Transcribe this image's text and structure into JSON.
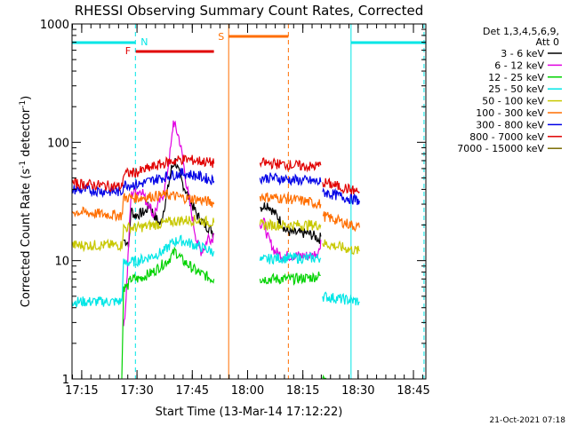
{
  "chart_data": {
    "type": "line",
    "title": "RHESSI Observing Summary Count Rates, Corrected",
    "xlabel": "Start Time (13-Mar-14 17:12:22)",
    "ylabel_main": "Corrected Count Rate (s",
    "ylabel_sup1": "-1",
    "ylabel_mid": " detector",
    "ylabel_sup2": "-1",
    "ylabel_end": ")",
    "yscale": "log",
    "ylim": [
      1,
      1000
    ],
    "xlim_minutes": [
      0,
      96
    ],
    "x_ticks": [
      {
        "label": "17:15",
        "minute": 2.63
      },
      {
        "label": "17:30",
        "minute": 17.63
      },
      {
        "label": "17:45",
        "minute": 32.63
      },
      {
        "label": "18:00",
        "minute": 47.63
      },
      {
        "label": "18:15",
        "minute": 62.63
      },
      {
        "label": "18:30",
        "minute": 77.63
      },
      {
        "label": "18:45",
        "minute": 92.63
      }
    ],
    "y_ticks": [
      {
        "label": "1",
        "value": 1
      },
      {
        "label": "10",
        "value": 10
      },
      {
        "label": "100",
        "value": 100
      },
      {
        "label": "1000",
        "value": 1000
      }
    ],
    "legend_header": [
      "Det 1,3,4,5,6,9,",
      "Att 0"
    ],
    "series": [
      {
        "name": "3 - 6 keV",
        "color": "#000000",
        "seg1": [
          [
            14,
            15
          ],
          [
            15.5,
            14
          ],
          [
            16,
            27
          ],
          [
            17,
            24
          ],
          [
            20,
            26
          ],
          [
            21,
            30
          ],
          [
            22,
            25
          ],
          [
            24,
            20
          ],
          [
            26,
            40
          ],
          [
            27,
            60
          ],
          [
            28,
            70
          ],
          [
            29,
            55
          ],
          [
            30,
            45
          ],
          [
            31,
            38
          ],
          [
            32,
            32
          ],
          [
            33,
            28
          ],
          [
            34,
            24
          ],
          [
            35,
            22
          ],
          [
            36,
            20
          ],
          [
            37,
            19
          ],
          [
            38,
            18
          ],
          [
            38.5,
            17
          ]
        ],
        "seg2": [
          [
            51,
            28
          ],
          [
            53,
            30
          ],
          [
            56,
            23
          ],
          [
            58,
            18
          ],
          [
            60,
            17
          ],
          [
            62,
            17
          ],
          [
            64,
            17
          ],
          [
            66,
            16
          ],
          [
            67,
            15
          ],
          [
            67.5,
            16
          ]
        ],
        "seg3": []
      },
      {
        "name": "6 - 12 keV",
        "color": "#e100e1",
        "seg1": [
          [
            14,
            2.8
          ],
          [
            14.5,
            4
          ],
          [
            15,
            8
          ],
          [
            16,
            35
          ],
          [
            17,
            40
          ],
          [
            18,
            38
          ],
          [
            19,
            40
          ],
          [
            20,
            32
          ],
          [
            21,
            30
          ],
          [
            22,
            24
          ],
          [
            23,
            28
          ],
          [
            25,
            38
          ],
          [
            26,
            60
          ],
          [
            27,
            100
          ],
          [
            27.5,
            150
          ],
          [
            28,
            135
          ],
          [
            29,
            110
          ],
          [
            30,
            75
          ],
          [
            31,
            45
          ],
          [
            32,
            30
          ],
          [
            33,
            20
          ],
          [
            34,
            14
          ],
          [
            35,
            12
          ],
          [
            36,
            13
          ],
          [
            37,
            16
          ],
          [
            38,
            15
          ],
          [
            38.5,
            17
          ]
        ],
        "seg2": [
          [
            51,
            20
          ],
          [
            52,
            22
          ],
          [
            53,
            16
          ],
          [
            55,
            12
          ],
          [
            57,
            11
          ],
          [
            59,
            11
          ],
          [
            62,
            11
          ],
          [
            65,
            11
          ],
          [
            67,
            12
          ],
          [
            67.5,
            15
          ]
        ],
        "seg3": []
      },
      {
        "name": "12 - 25 keV",
        "color": "#00d200",
        "seg1": [
          [
            13.5,
            1
          ],
          [
            14,
            6
          ],
          [
            15,
            6
          ],
          [
            16,
            7
          ],
          [
            17,
            7
          ],
          [
            18,
            7
          ],
          [
            20,
            7.5
          ],
          [
            22,
            8
          ],
          [
            24,
            9
          ],
          [
            26,
            10
          ],
          [
            27,
            11
          ],
          [
            28,
            12
          ],
          [
            29,
            11
          ],
          [
            30,
            10
          ],
          [
            32,
            9
          ],
          [
            34,
            8
          ],
          [
            36,
            7.5
          ],
          [
            38,
            7
          ],
          [
            38.5,
            7
          ]
        ],
        "seg2": [
          [
            51,
            7
          ],
          [
            55,
            7
          ],
          [
            60,
            7
          ],
          [
            65,
            7.2
          ],
          [
            67.5,
            7.5
          ]
        ],
        "seg3": [
          [
            68,
            1
          ],
          [
            69,
            1
          ]
        ]
      },
      {
        "name": "25 - 50 keV",
        "color": "#00e6e6",
        "seg1": [
          [
            0,
            4.5
          ],
          [
            13.5,
            4.5
          ],
          [
            14,
            9.5
          ],
          [
            18,
            10
          ],
          [
            22,
            11
          ],
          [
            25,
            12
          ],
          [
            27,
            14
          ],
          [
            29,
            15
          ],
          [
            32,
            14
          ],
          [
            35,
            13
          ],
          [
            38,
            12
          ],
          [
            38.5,
            12
          ]
        ],
        "seg2": [
          [
            51,
            10
          ],
          [
            55,
            10.5
          ],
          [
            60,
            10.5
          ],
          [
            65,
            10.5
          ],
          [
            67.5,
            10.5
          ]
        ],
        "seg3": [
          [
            68,
            5
          ],
          [
            78,
            4.5
          ]
        ]
      },
      {
        "name": "50 - 100 keV",
        "color": "#c8c800",
        "seg1": [
          [
            0,
            13.5
          ],
          [
            13.5,
            13.5
          ],
          [
            14,
            19
          ],
          [
            18,
            19
          ],
          [
            22,
            20
          ],
          [
            26,
            21
          ],
          [
            30,
            22
          ],
          [
            34,
            22
          ],
          [
            38,
            21
          ],
          [
            38.5,
            21
          ]
        ],
        "seg2": [
          [
            51,
            20
          ],
          [
            55,
            20
          ],
          [
            60,
            20
          ],
          [
            65,
            20
          ],
          [
            67.5,
            20
          ]
        ],
        "seg3": [
          [
            68,
            14
          ],
          [
            78,
            12
          ]
        ]
      },
      {
        "name": "100 - 300 keV",
        "color": "#ff6e00",
        "seg1": [
          [
            0,
            26
          ],
          [
            13.5,
            24
          ],
          [
            14,
            34
          ],
          [
            18,
            34
          ],
          [
            22,
            35
          ],
          [
            26,
            36
          ],
          [
            30,
            34
          ],
          [
            34,
            33
          ],
          [
            38,
            31
          ],
          [
            38.5,
            30
          ]
        ],
        "seg2": [
          [
            51,
            35
          ],
          [
            55,
            34
          ],
          [
            60,
            33
          ],
          [
            65,
            31
          ],
          [
            67.5,
            30
          ]
        ],
        "seg3": [
          [
            68,
            24
          ],
          [
            78,
            19
          ]
        ]
      },
      {
        "name": "300 - 800 keV",
        "color": "#0000e6",
        "seg1": [
          [
            0,
            40
          ],
          [
            13.5,
            38
          ],
          [
            14,
            44
          ],
          [
            18,
            44
          ],
          [
            22,
            48
          ],
          [
            26,
            52
          ],
          [
            30,
            55
          ],
          [
            34,
            52
          ],
          [
            38,
            48
          ],
          [
            38.5,
            47
          ]
        ],
        "seg2": [
          [
            51,
            50
          ],
          [
            55,
            50
          ],
          [
            60,
            48
          ],
          [
            65,
            47
          ],
          [
            67.5,
            46
          ]
        ],
        "seg3": [
          [
            68,
            38
          ],
          [
            78,
            32
          ]
        ]
      },
      {
        "name": "800 - 7000 keV",
        "color": "#e10000",
        "seg1": [
          [
            0,
            45
          ],
          [
            13.5,
            42
          ],
          [
            14,
            54
          ],
          [
            18,
            56
          ],
          [
            22,
            62
          ],
          [
            26,
            68
          ],
          [
            30,
            72
          ],
          [
            34,
            70
          ],
          [
            38,
            67
          ],
          [
            38.5,
            66
          ]
        ],
        "seg2": [
          [
            51,
            67
          ],
          [
            55,
            66
          ],
          [
            60,
            64
          ],
          [
            65,
            62
          ],
          [
            67.5,
            64
          ]
        ],
        "seg3": [
          [
            68,
            46
          ],
          [
            78,
            38
          ]
        ]
      },
      {
        "name": "7000 - 15000 keV",
        "color": "#7a6b00",
        "seg1": [],
        "seg2": [],
        "seg3": []
      }
    ],
    "annotations": {
      "N_label": "N",
      "F_label": "F",
      "S_label": "S",
      "night_color": "#00e6e6",
      "flare_color": "#e10000",
      "saa_color": "#ff6e00",
      "night_start_min": 0,
      "night_end_min": 17.2,
      "night2_start_min": 75.7,
      "night2_end_min": 96,
      "flare_start_min": 17.3,
      "flare_end_min": 38.5,
      "saa_start_min": 42.5,
      "saa_end_min": 58.7
    },
    "footer_date": "21-Oct-2021 07:18"
  }
}
